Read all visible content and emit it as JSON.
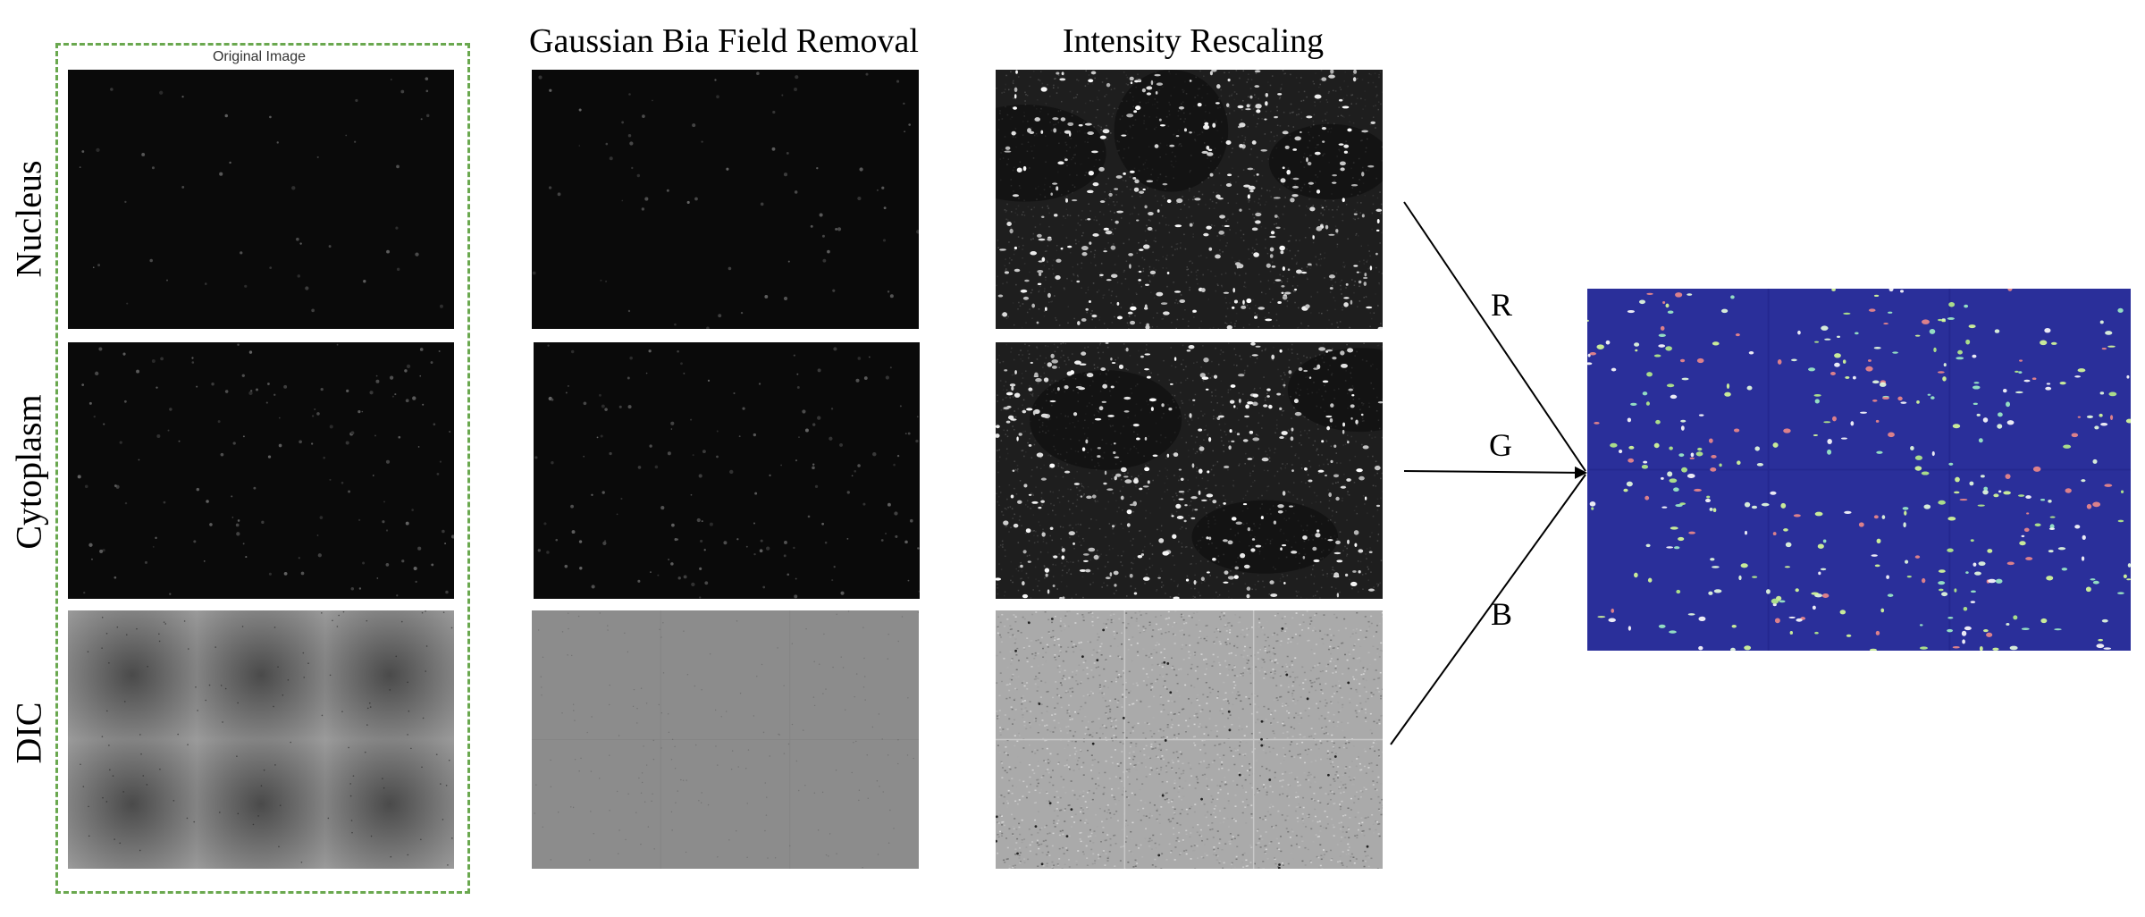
{
  "columns": {
    "original": "Original Image",
    "gaussian": "Gaussian Bia Field Removal",
    "rescaling": "Intensity Rescaling"
  },
  "rows": [
    "Nucleus",
    "Cytoplasm",
    "DIC"
  ],
  "channels": {
    "r": "R",
    "g": "G",
    "b": "B"
  },
  "colors": {
    "dashed_border": "#6aa84f",
    "composite_background": "#2a2f9a",
    "fluorescent_spots": "#ffffff",
    "dic_gray": "#8c8c8c"
  }
}
